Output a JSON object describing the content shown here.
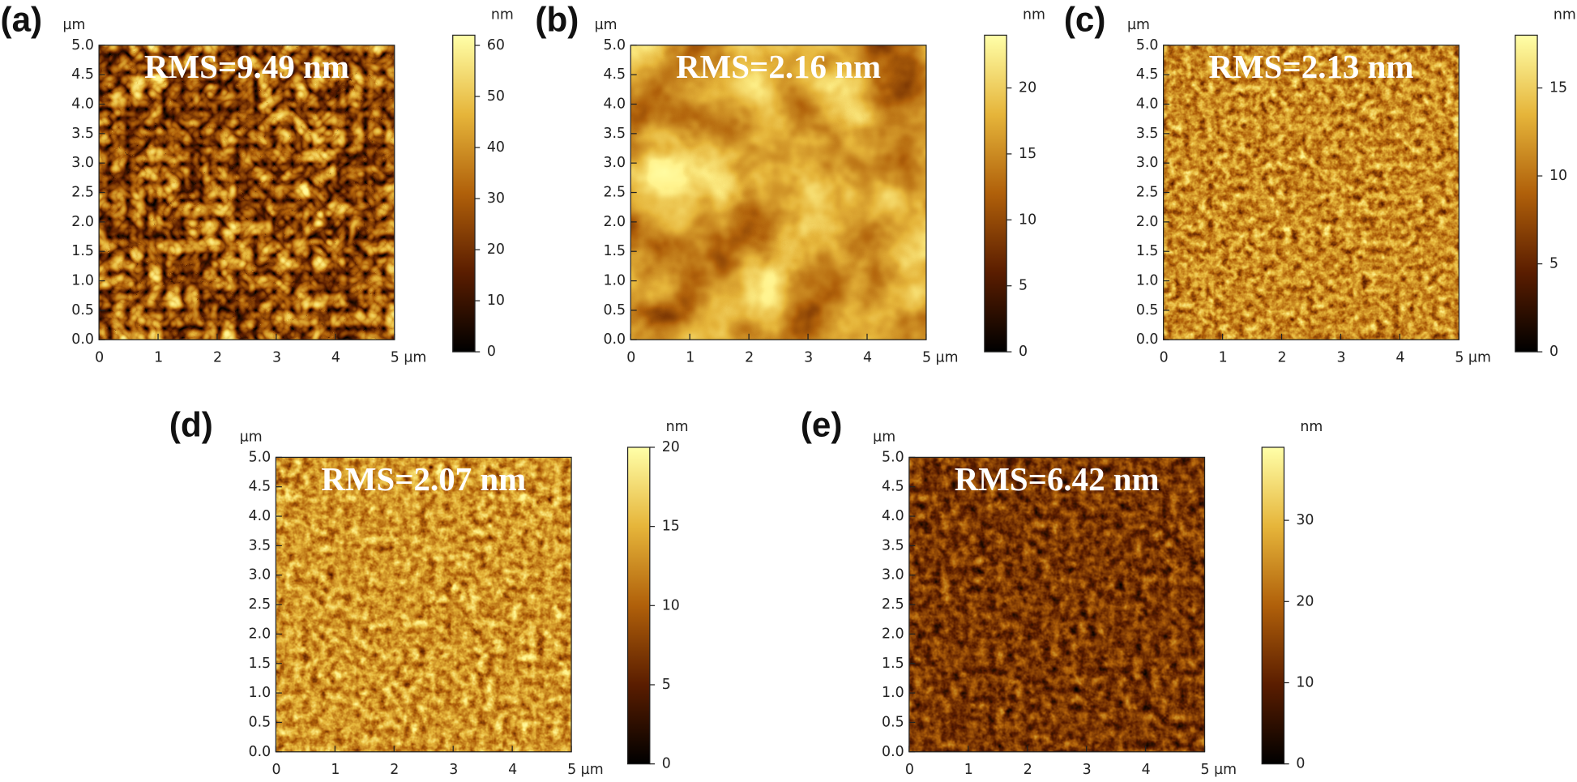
{
  "chart_data": [
    {
      "type": "image",
      "panel": "(a)",
      "title": "RMS=9.49 nm",
      "y_unit": "µm",
      "colorbar_unit": "nm",
      "xlim": [
        0,
        5
      ],
      "xticks": [
        0,
        1,
        2,
        3,
        4,
        {
          "value": 5,
          "label": "5 µm"
        }
      ],
      "ylim": [
        0,
        5
      ],
      "yticks": [
        {
          "value": 0,
          "label": "0.0"
        },
        0.5,
        {
          "value": 1,
          "label": "1.0"
        },
        1.5,
        {
          "value": 2,
          "label": "2.0"
        },
        2.5,
        {
          "value": 3,
          "label": "3.0"
        },
        3.5,
        {
          "value": 4,
          "label": "4.0"
        },
        4.5,
        {
          "value": 5,
          "label": "5.0"
        }
      ],
      "clim": [
        0,
        62
      ],
      "cticks": [
        0,
        10,
        20,
        30,
        40,
        50,
        60
      ]
    },
    {
      "type": "image",
      "panel": "(b)",
      "title": "RMS=2.16 nm",
      "y_unit": "µm",
      "colorbar_unit": "nm",
      "xlim": [
        0,
        5
      ],
      "xticks": [
        0,
        1,
        2,
        3,
        4,
        {
          "value": 5,
          "label": "5 µm"
        }
      ],
      "ylim": [
        0,
        5
      ],
      "yticks": [
        {
          "value": 0,
          "label": "0.0"
        },
        0.5,
        {
          "value": 1,
          "label": "1.0"
        },
        1.5,
        {
          "value": 2,
          "label": "2.0"
        },
        2.5,
        {
          "value": 3,
          "label": "3.0"
        },
        3.5,
        {
          "value": 4,
          "label": "4.0"
        },
        4.5,
        {
          "value": 5,
          "label": "5.0"
        }
      ],
      "clim": [
        0,
        24
      ],
      "cticks": [
        0,
        5,
        10,
        15,
        20
      ]
    },
    {
      "type": "image",
      "panel": "(c)",
      "title": "RMS=2.13 nm",
      "y_unit": "µm",
      "colorbar_unit": "nm",
      "xlim": [
        0,
        5
      ],
      "xticks": [
        0,
        1,
        2,
        3,
        4,
        {
          "value": 5,
          "label": "5 µm"
        }
      ],
      "ylim": [
        0,
        5
      ],
      "yticks": [
        {
          "value": 0,
          "label": "0.0"
        },
        0.5,
        {
          "value": 1,
          "label": "1.0"
        },
        1.5,
        {
          "value": 2,
          "label": "2.0"
        },
        2.5,
        {
          "value": 3,
          "label": "3.0"
        },
        3.5,
        {
          "value": 4,
          "label": "4.0"
        },
        4.5,
        {
          "value": 5,
          "label": "5.0"
        }
      ],
      "clim": [
        0,
        18
      ],
      "cticks": [
        0,
        5,
        10,
        15
      ]
    },
    {
      "type": "image",
      "panel": "(d)",
      "title": "RMS=2.07 nm",
      "y_unit": "µm",
      "colorbar_unit": "nm",
      "xlim": [
        0,
        5
      ],
      "xticks": [
        0,
        1,
        2,
        3,
        4,
        {
          "value": 5,
          "label": "5 µm"
        }
      ],
      "ylim": [
        0,
        5
      ],
      "yticks": [
        {
          "value": 0,
          "label": "0.0"
        },
        0.5,
        {
          "value": 1,
          "label": "1.0"
        },
        1.5,
        {
          "value": 2,
          "label": "2.0"
        },
        2.5,
        {
          "value": 3,
          "label": "3.0"
        },
        3.5,
        {
          "value": 4,
          "label": "4.0"
        },
        4.5,
        {
          "value": 5,
          "label": "5.0"
        }
      ],
      "clim": [
        0,
        20
      ],
      "cticks": [
        0,
        5,
        10,
        15,
        20
      ]
    },
    {
      "type": "image",
      "panel": "(e)",
      "title": "RMS=6.42 nm",
      "y_unit": "µm",
      "colorbar_unit": "nm",
      "xlim": [
        0,
        5
      ],
      "xticks": [
        0,
        1,
        2,
        3,
        4,
        {
          "value": 5,
          "label": "5 µm"
        }
      ],
      "ylim": [
        0,
        5
      ],
      "yticks": [
        {
          "value": 0,
          "label": "0.0"
        },
        0.5,
        {
          "value": 1,
          "label": "1.0"
        },
        1.5,
        {
          "value": 2,
          "label": "2.0"
        },
        2.5,
        {
          "value": 3,
          "label": "3.0"
        },
        3.5,
        {
          "value": 4,
          "label": "4.0"
        },
        4.5,
        {
          "value": 5,
          "label": "5.0"
        }
      ],
      "clim": [
        0,
        39
      ],
      "cticks": [
        0,
        10,
        20,
        30
      ]
    }
  ]
}
